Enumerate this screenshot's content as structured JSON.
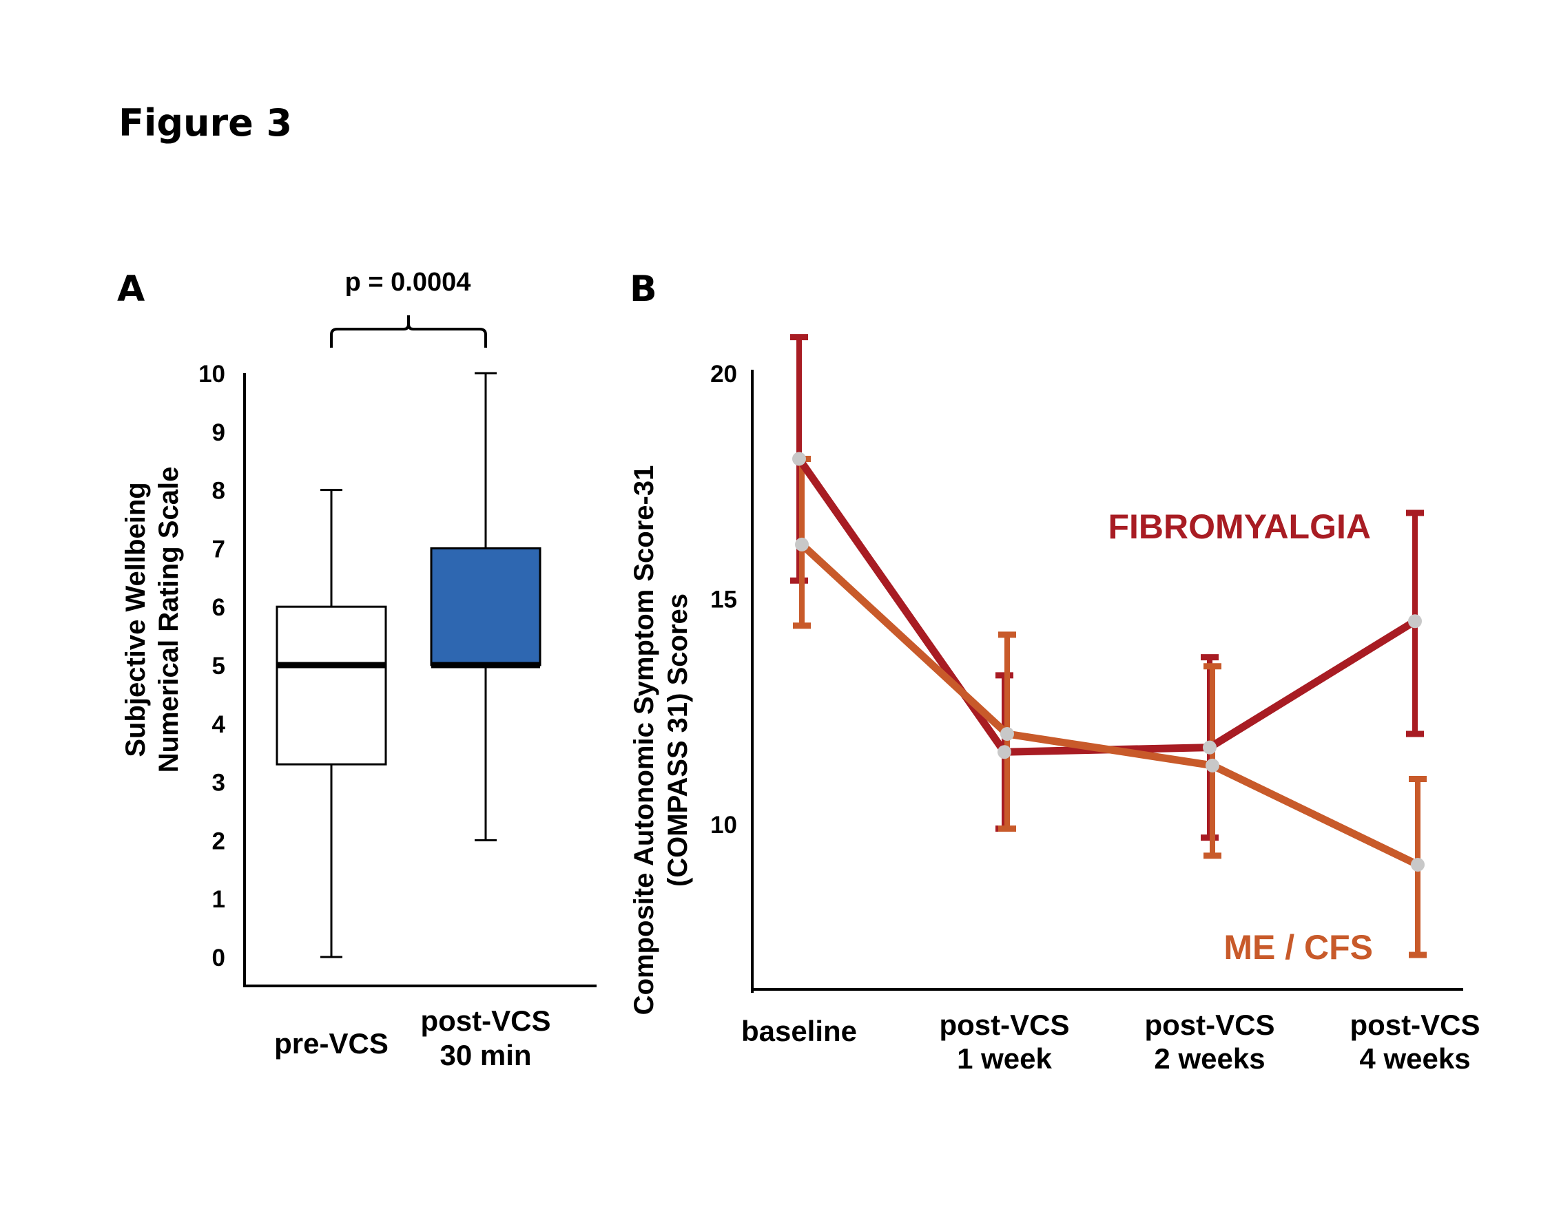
{
  "figure_title": "Figure 3",
  "colors": {
    "fibromyalgia": "#a81c23",
    "mecfs": "#c85a2a",
    "box_fill_post": "#2e67b1",
    "marker": "#c8c8c8"
  },
  "chart_data": [
    {
      "panel": "A",
      "type": "box",
      "significance": "p = 0.0004",
      "ylabel_line1": "Subjective Wellbeing",
      "ylabel_line2": "Numerical Rating Scale",
      "ylim": [
        0,
        10
      ],
      "yticks": [
        "0",
        "1",
        "2",
        "3",
        "4",
        "5",
        "6",
        "7",
        "8",
        "9",
        "10"
      ],
      "groups": [
        {
          "label_line1": "pre-VCS",
          "label_line2": "",
          "min": 0,
          "q1": 3.3,
          "median": 5,
          "q3": 6,
          "max": 8,
          "fill": "#ffffff"
        },
        {
          "label_line1": "post-VCS",
          "label_line2": "30 min",
          "min": 2,
          "q1": 5,
          "median": 5,
          "q3": 7,
          "max": 10,
          "fill": "#2e67b1"
        }
      ]
    },
    {
      "panel": "B",
      "type": "line",
      "ylabel_line1": "Composite Autonomic Symptom Score-31",
      "ylabel_line2": "(COMPASS 31) Scores",
      "ylim": [
        6.5,
        20
      ],
      "yticks": [
        "10",
        "15",
        "20"
      ],
      "categories": [
        {
          "line1": "baseline",
          "line2": ""
        },
        {
          "line1": "post-VCS",
          "line2": "1 week"
        },
        {
          "line1": "post-VCS",
          "line2": "2 weeks"
        },
        {
          "line1": "post-VCS",
          "line2": "4 weeks"
        }
      ],
      "series": [
        {
          "name": "FIBROMYALGIA",
          "values": [
            18.1,
            11.6,
            11.7,
            14.5
          ],
          "err_high": [
            20.8,
            13.3,
            13.7,
            16.9
          ],
          "err_low": [
            15.4,
            9.9,
            9.7,
            12.0
          ]
        },
        {
          "name": "ME / CFS",
          "values": [
            16.2,
            12.0,
            11.3,
            9.1
          ],
          "err_high": [
            18.1,
            14.2,
            13.5,
            11.0
          ],
          "err_low": [
            14.4,
            9.9,
            9.3,
            7.1
          ]
        }
      ]
    }
  ]
}
